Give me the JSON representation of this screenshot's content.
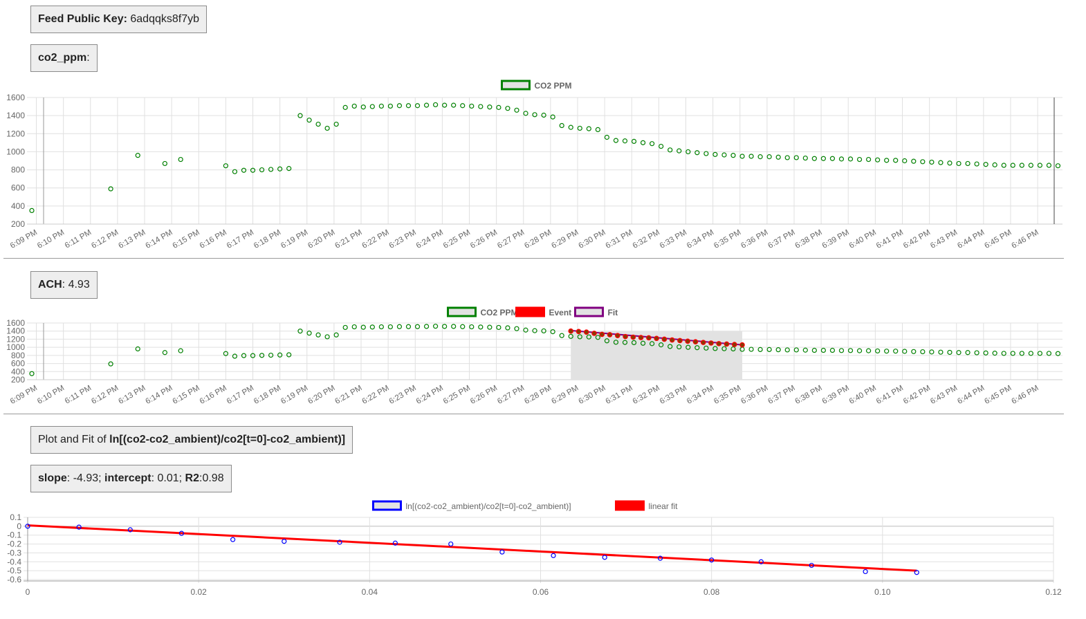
{
  "feed_key": {
    "label": "Feed Public Key:",
    "value": "6adqqks8f7yb"
  },
  "co2_header": {
    "label": "co2_ppm",
    "suffix": ":"
  },
  "ach_header": {
    "label": "ACH",
    "sep": ":",
    "value": "4.93"
  },
  "plot_header": {
    "prefix": "Plot and Fit of ",
    "formula": "ln[(co2-co2_ambient)/co2[t=0]-co2_ambient)]"
  },
  "fit_header": {
    "slope_label": "slope",
    "slope_value": ": -4.93; ",
    "intercept_label": "intercept",
    "intercept_value": ": 0.01; ",
    "r2_label": "R2",
    "r2_value": ":0.98"
  },
  "colors": {
    "co2": "#008000",
    "co2_fill": "#e2e2e2",
    "event": "#ff0000",
    "fit": "#800080",
    "scatter": "#0000ff",
    "linear_fit": "#ff0000",
    "grid": "#e0e0e0",
    "axis": "#666666",
    "tick_text": "#666666"
  },
  "chart_data": [
    {
      "type": "scatter",
      "x_type": "time",
      "legend": [
        {
          "label": "CO2 PPM",
          "color": "#008000"
        }
      ],
      "legend_position": "top",
      "ylim": [
        200,
        1600
      ],
      "yticks": [
        "200",
        "400",
        "600",
        "800",
        "1000",
        "1200",
        "1400",
        "1600"
      ],
      "xticks": [
        "6:09 PM",
        "6:10 PM",
        "6:11 PM",
        "6:12 PM",
        "6:13 PM",
        "6:14 PM",
        "6:15 PM",
        "6:16 PM",
        "6:17 PM",
        "6:18 PM",
        "6:19 PM",
        "6:20 PM",
        "6:21 PM",
        "6:22 PM",
        "6:23 PM",
        "6:24 PM",
        "6:25 PM",
        "6:26 PM",
        "6:27 PM",
        "6:28 PM",
        "6:29 PM",
        "6:30 PM",
        "6:31 PM",
        "6:32 PM",
        "6:33 PM",
        "6:34 PM",
        "6:35 PM",
        "6:36 PM",
        "6:37 PM",
        "6:38 PM",
        "6:39 PM",
        "6:40 PM",
        "6:41 PM",
        "6:42 PM",
        "6:43 PM",
        "6:44 PM",
        "6:45 PM",
        "6:46 PM"
      ],
      "grid": true,
      "series": [
        {
          "name": "CO2 PPM",
          "x": [
            "6:08:50 PM",
            "6:11:45 PM",
            "6:12:45 PM",
            "6:13:45 PM",
            "6:14:20 PM",
            "6:16:00 PM",
            "6:16:20 PM",
            "6:16:40 PM",
            "6:17:00 PM",
            "6:17:20 PM",
            "6:17:40 PM",
            "6:18:00 PM",
            "6:18:20 PM",
            "6:18:45 PM",
            "6:19:05 PM",
            "6:19:25 PM",
            "6:19:45 PM",
            "6:20:05 PM",
            "6:20:25 PM",
            "6:20:45 PM",
            "6:21:05 PM",
            "6:21:25 PM",
            "6:21:45 PM",
            "6:22:05 PM",
            "6:22:25 PM",
            "6:22:45 PM",
            "6:23:05 PM",
            "6:23:25 PM",
            "6:23:45 PM",
            "6:24:05 PM",
            "6:24:25 PM",
            "6:24:45 PM",
            "6:25:05 PM",
            "6:25:25 PM",
            "6:25:45 PM",
            "6:26:05 PM",
            "6:26:25 PM",
            "6:26:45 PM",
            "6:27:05 PM",
            "6:27:25 PM",
            "6:27:45 PM",
            "6:28:05 PM",
            "6:28:25 PM",
            "6:28:45 PM",
            "6:29:05 PM",
            "6:29:25 PM",
            "6:29:45 PM",
            "6:30:05 PM",
            "6:30:25 PM",
            "6:30:45 PM",
            "6:31:05 PM",
            "6:31:25 PM",
            "6:31:45 PM",
            "6:32:05 PM",
            "6:32:25 PM",
            "6:32:45 PM",
            "6:33:05 PM",
            "6:33:25 PM",
            "6:33:45 PM",
            "6:34:05 PM",
            "6:34:25 PM",
            "6:34:45 PM",
            "6:35:05 PM",
            "6:35:25 PM",
            "6:35:45 PM",
            "6:36:05 PM",
            "6:36:25 PM",
            "6:36:45 PM",
            "6:37:05 PM",
            "6:37:25 PM",
            "6:37:45 PM",
            "6:38:05 PM",
            "6:38:25 PM",
            "6:38:45 PM",
            "6:39:05 PM",
            "6:39:25 PM",
            "6:39:45 PM",
            "6:40:05 PM",
            "6:40:25 PM",
            "6:40:45 PM",
            "6:41:05 PM",
            "6:41:25 PM",
            "6:41:45 PM",
            "6:42:05 PM",
            "6:42:25 PM",
            "6:42:45 PM",
            "6:43:05 PM",
            "6:43:25 PM",
            "6:43:45 PM",
            "6:44:05 PM",
            "6:44:25 PM",
            "6:44:45 PM",
            "6:45:05 PM",
            "6:45:25 PM",
            "6:45:45 PM",
            "6:46:05 PM",
            "6:46:25 PM",
            "6:46:45 PM"
          ],
          "y": [
            350,
            590,
            960,
            870,
            915,
            845,
            780,
            795,
            795,
            800,
            805,
            810,
            815,
            1400,
            1350,
            1305,
            1260,
            1305,
            1490,
            1505,
            1495,
            1500,
            1505,
            1505,
            1510,
            1510,
            1510,
            1515,
            1520,
            1515,
            1515,
            1510,
            1505,
            1500,
            1495,
            1490,
            1480,
            1460,
            1425,
            1410,
            1405,
            1385,
            1290,
            1270,
            1260,
            1255,
            1245,
            1160,
            1125,
            1120,
            1115,
            1100,
            1090,
            1060,
            1020,
            1010,
            1000,
            990,
            980,
            970,
            965,
            960,
            950,
            950,
            945,
            945,
            940,
            935,
            935,
            930,
            925,
            925,
            925,
            920,
            920,
            915,
            915,
            910,
            905,
            905,
            900,
            895,
            890,
            885,
            880,
            875,
            870,
            870,
            865,
            860,
            855,
            850,
            850,
            850,
            850,
            850,
            850,
            845
          ]
        }
      ]
    },
    {
      "type": "scatter",
      "x_type": "time",
      "legend": [
        {
          "label": "CO2 PPM",
          "color": "#008000"
        },
        {
          "label": "Event",
          "color": "#ff0000"
        },
        {
          "label": "Fit",
          "color": "#800080"
        }
      ],
      "legend_position": "top",
      "ylim": [
        200,
        1600
      ],
      "yticks": [
        "200",
        "400",
        "600",
        "800",
        "1000",
        "1200",
        "1400",
        "1600"
      ],
      "grid": true,
      "event_range": [
        "6:28:45 PM",
        "6:35:05 PM"
      ],
      "event_points": [
        1400,
        1390,
        1375,
        1345,
        1320,
        1310,
        1290,
        1265,
        1250,
        1240,
        1235,
        1220,
        1200,
        1180,
        1165,
        1150,
        1135,
        1120,
        1105,
        1090,
        1080,
        1070,
        1060
      ],
      "fit_line": [
        1415,
        1060
      ]
    },
    {
      "type": "scatter",
      "legend": [
        {
          "label": "ln[(co2-co2_ambient)/co2[t=0]-co2_ambient)]",
          "color": "#0000ff"
        },
        {
          "label": "linear fit",
          "color": "#ff0000"
        }
      ],
      "legend_position": "top",
      "xlim": [
        0,
        0.12
      ],
      "ylim": [
        -0.6,
        0.1
      ],
      "xticks": [
        "0",
        "0.02",
        "0.04",
        "0.06",
        "0.08",
        "0.10",
        "0.12"
      ],
      "yticks": [
        "0.1",
        "0",
        "-0.1",
        "-0.2",
        "-0.3",
        "-0.4",
        "-0.5",
        "-0.6"
      ],
      "grid": true,
      "series": [
        {
          "name": "ln[(co2-co2_ambient)/co2[t=0]-co2_ambient)]",
          "x": [
            0,
            0.006,
            0.012,
            0.018,
            0.024,
            0.03,
            0.0365,
            0.043,
            0.0495,
            0.0555,
            0.0615,
            0.0675,
            0.074,
            0.08,
            0.0858,
            0.0917,
            0.098,
            0.104
          ],
          "y": [
            0.0,
            -0.01,
            -0.04,
            -0.08,
            -0.15,
            -0.17,
            -0.18,
            -0.19,
            -0.2,
            -0.29,
            -0.33,
            -0.35,
            -0.36,
            -0.38,
            -0.4,
            -0.44,
            -0.51,
            -0.52
          ]
        },
        {
          "name": "linear fit",
          "x": [
            0,
            0.104
          ],
          "y": [
            0.01,
            -0.5
          ]
        }
      ]
    }
  ]
}
